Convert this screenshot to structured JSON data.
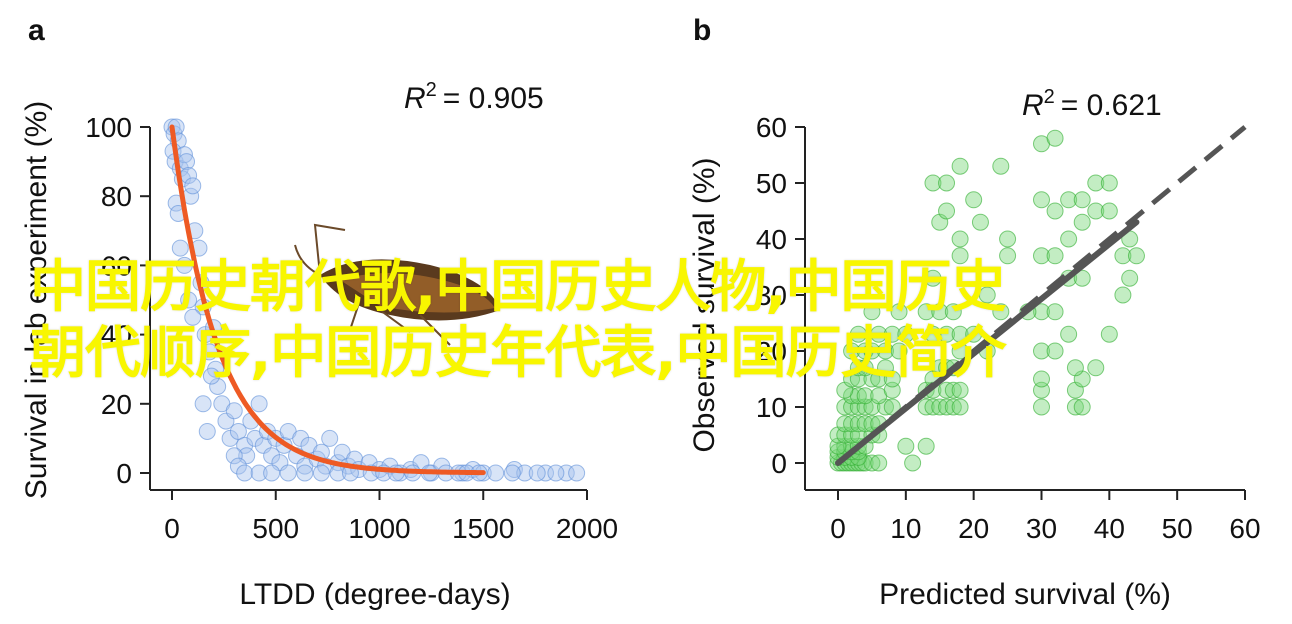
{
  "overlay": {
    "line1": "中国历史朝代歌,中国历史人物,中国历史",
    "line2": "朝代顺序,中国历史年代表,中国历史简介"
  },
  "colors": {
    "blue_point": "#a9c4ee",
    "blue_edge": "#5f8fd8",
    "green_point": "#7ad77a",
    "green_edge": "#2fae2f",
    "fit_orange": "#ee5a24",
    "fit_gray": "#555555",
    "overlay_yellow": "#f8f600"
  },
  "chart_data": [
    {
      "panel": "a",
      "type": "scatter",
      "xlabel": "LTDD (degree-days)",
      "ylabel": "Survival in lab experiment (%)",
      "annotation": {
        "r2_label": "R",
        "r2_sup": "2",
        "r2_value": "= 0.905"
      },
      "xlim": [
        0,
        2000
      ],
      "ylim": [
        0,
        100
      ],
      "xticks": [
        "0",
        "500",
        "1000",
        "1500",
        "2000"
      ],
      "yticks": [
        "0",
        "20",
        "40",
        "60",
        "80",
        "100"
      ],
      "points": [
        [
          0,
          100
        ],
        [
          10,
          98
        ],
        [
          20,
          100
        ],
        [
          30,
          96
        ],
        [
          5,
          93
        ],
        [
          15,
          90
        ],
        [
          40,
          88
        ],
        [
          50,
          85
        ],
        [
          60,
          92
        ],
        [
          70,
          90
        ],
        [
          80,
          86
        ],
        [
          90,
          80
        ],
        [
          20,
          78
        ],
        [
          30,
          75
        ],
        [
          100,
          83
        ],
        [
          110,
          70
        ],
        [
          40,
          65
        ],
        [
          60,
          60
        ],
        [
          130,
          65
        ],
        [
          140,
          55
        ],
        [
          150,
          48
        ],
        [
          80,
          50
        ],
        [
          100,
          45
        ],
        [
          160,
          40
        ],
        [
          180,
          35
        ],
        [
          200,
          42
        ],
        [
          210,
          30
        ],
        [
          220,
          25
        ],
        [
          240,
          20
        ],
        [
          150,
          20
        ],
        [
          170,
          12
        ],
        [
          190,
          28
        ],
        [
          260,
          15
        ],
        [
          280,
          10
        ],
        [
          300,
          18
        ],
        [
          320,
          12
        ],
        [
          350,
          8
        ],
        [
          360,
          5
        ],
        [
          380,
          15
        ],
        [
          400,
          10
        ],
        [
          420,
          20
        ],
        [
          440,
          8
        ],
        [
          460,
          12
        ],
        [
          300,
          5
        ],
        [
          320,
          2
        ],
        [
          480,
          5
        ],
        [
          500,
          10
        ],
        [
          520,
          3
        ],
        [
          540,
          8
        ],
        [
          560,
          12
        ],
        [
          600,
          5
        ],
        [
          620,
          10
        ],
        [
          640,
          2
        ],
        [
          660,
          8
        ],
        [
          700,
          4
        ],
        [
          720,
          6
        ],
        [
          740,
          2
        ],
        [
          760,
          10
        ],
        [
          800,
          3
        ],
        [
          820,
          6
        ],
        [
          850,
          2
        ],
        [
          880,
          4
        ],
        [
          900,
          1
        ],
        [
          950,
          3
        ],
        [
          1000,
          1
        ],
        [
          1050,
          2
        ],
        [
          1100,
          0
        ],
        [
          1150,
          1
        ],
        [
          1200,
          3
        ],
        [
          1250,
          0
        ],
        [
          1300,
          2
        ],
        [
          1400,
          0
        ],
        [
          1450,
          1
        ],
        [
          1500,
          0
        ],
        [
          1650,
          1
        ],
        [
          1700,
          0
        ],
        [
          1800,
          0
        ],
        [
          1900,
          0
        ],
        [
          1950,
          0
        ],
        [
          350,
          0
        ],
        [
          420,
          0
        ],
        [
          480,
          0
        ],
        [
          560,
          0
        ],
        [
          640,
          0
        ],
        [
          720,
          0
        ],
        [
          800,
          0
        ],
        [
          860,
          0
        ],
        [
          960,
          0
        ],
        [
          1020,
          0
        ],
        [
          1080,
          0
        ],
        [
          1160,
          0
        ],
        [
          1240,
          0
        ],
        [
          1320,
          0
        ],
        [
          1380,
          0
        ],
        [
          1420,
          0
        ],
        [
          1480,
          0
        ],
        [
          1560,
          0
        ],
        [
          1640,
          0
        ],
        [
          1760,
          0
        ],
        [
          1850,
          0
        ]
      ],
      "fit": {
        "type": "exponential",
        "formula": "100*exp(-x/220)",
        "x_range": [
          0,
          1500
        ]
      }
    },
    {
      "panel": "b",
      "type": "scatter",
      "xlabel": "Predicted survival (%)",
      "ylabel": "Observed survival (%)",
      "annotation": {
        "r2_label": "R",
        "r2_sup": "2",
        "r2_value": "= 0.621"
      },
      "xlim": [
        0,
        60
      ],
      "ylim": [
        0,
        60
      ],
      "xticks": [
        "0",
        "10",
        "20",
        "30",
        "40",
        "50",
        "60"
      ],
      "yticks": [
        "0",
        "10",
        "20",
        "30",
        "40",
        "50",
        "60"
      ],
      "points": [
        [
          0,
          0
        ],
        [
          0.5,
          0
        ],
        [
          1,
          0
        ],
        [
          1.5,
          0
        ],
        [
          2,
          0
        ],
        [
          2.5,
          0
        ],
        [
          3,
          0
        ],
        [
          3.5,
          0
        ],
        [
          4,
          0
        ],
        [
          5,
          0
        ],
        [
          6,
          0
        ],
        [
          0,
          1
        ],
        [
          1,
          1
        ],
        [
          2,
          1
        ],
        [
          3,
          1
        ],
        [
          0,
          2
        ],
        [
          1,
          2
        ],
        [
          2,
          2
        ],
        [
          3,
          2
        ],
        [
          1,
          3
        ],
        [
          2,
          3
        ],
        [
          3,
          3
        ],
        [
          0,
          3
        ],
        [
          4,
          3
        ],
        [
          0,
          5
        ],
        [
          1,
          5
        ],
        [
          2,
          5
        ],
        [
          3,
          5
        ],
        [
          5,
          5
        ],
        [
          6,
          5
        ],
        [
          1,
          7
        ],
        [
          2,
          7
        ],
        [
          3,
          7
        ],
        [
          4,
          7
        ],
        [
          5,
          7
        ],
        [
          6,
          7
        ],
        [
          1,
          10
        ],
        [
          2,
          10
        ],
        [
          3,
          10
        ],
        [
          4,
          10
        ],
        [
          5,
          10
        ],
        [
          7,
          10
        ],
        [
          8,
          10
        ],
        [
          2,
          12
        ],
        [
          3,
          12
        ],
        [
          4,
          12
        ],
        [
          6,
          12
        ],
        [
          8,
          13
        ],
        [
          1,
          13
        ],
        [
          2,
          15
        ],
        [
          3,
          15
        ],
        [
          5,
          15
        ],
        [
          6,
          15
        ],
        [
          8,
          15
        ],
        [
          3,
          17
        ],
        [
          4,
          17
        ],
        [
          7,
          17
        ],
        [
          2,
          20
        ],
        [
          4,
          20
        ],
        [
          5,
          20
        ],
        [
          7,
          20
        ],
        [
          9,
          20
        ],
        [
          3,
          23
        ],
        [
          6,
          23
        ],
        [
          8,
          23
        ],
        [
          10,
          23
        ],
        [
          5,
          27
        ],
        [
          9,
          27
        ],
        [
          13,
          10
        ],
        [
          14,
          10
        ],
        [
          15,
          10
        ],
        [
          16,
          10
        ],
        [
          17,
          10
        ],
        [
          18,
          10
        ],
        [
          13,
          13
        ],
        [
          14,
          13
        ],
        [
          16,
          13
        ],
        [
          17,
          13
        ],
        [
          18,
          13
        ],
        [
          14,
          15
        ],
        [
          15,
          17
        ],
        [
          16,
          17
        ],
        [
          17,
          17
        ],
        [
          18,
          20
        ],
        [
          14,
          23
        ],
        [
          16,
          23
        ],
        [
          18,
          23
        ],
        [
          13,
          27
        ],
        [
          15,
          27
        ],
        [
          17,
          27
        ],
        [
          14,
          33
        ],
        [
          18,
          37
        ],
        [
          18,
          40
        ],
        [
          14,
          50
        ],
        [
          16,
          50
        ],
        [
          18,
          53
        ],
        [
          24,
          53
        ],
        [
          30,
          57
        ],
        [
          32,
          58
        ],
        [
          30,
          10
        ],
        [
          30,
          13
        ],
        [
          30,
          15
        ],
        [
          30,
          20
        ],
        [
          32,
          20
        ],
        [
          34,
          23
        ],
        [
          30,
          27
        ],
        [
          32,
          27
        ],
        [
          34,
          33
        ],
        [
          36,
          33
        ],
        [
          30,
          37
        ],
        [
          32,
          37
        ],
        [
          34,
          40
        ],
        [
          36,
          43
        ],
        [
          38,
          45
        ],
        [
          40,
          45
        ],
        [
          34,
          47
        ],
        [
          36,
          47
        ],
        [
          30,
          47
        ],
        [
          32,
          45
        ],
        [
          38,
          50
        ],
        [
          40,
          50
        ],
        [
          35,
          10
        ],
        [
          36,
          10
        ],
        [
          35,
          13
        ],
        [
          36,
          15
        ],
        [
          35,
          17
        ],
        [
          38,
          17
        ],
        [
          40,
          23
        ],
        [
          42,
          30
        ],
        [
          43,
          33
        ],
        [
          42,
          37
        ],
        [
          43,
          40
        ],
        [
          44,
          37
        ],
        [
          28,
          27
        ],
        [
          24,
          27
        ],
        [
          22,
          30
        ],
        [
          25,
          37
        ],
        [
          25,
          40
        ],
        [
          21,
          43
        ],
        [
          20,
          47
        ],
        [
          15,
          43
        ],
        [
          16,
          45
        ],
        [
          20,
          23
        ],
        [
          22,
          20
        ],
        [
          10,
          3
        ],
        [
          11,
          0
        ],
        [
          13,
          3
        ]
      ],
      "one_to_one": {
        "x_range": [
          0,
          60
        ]
      },
      "fit": {
        "type": "linear",
        "x_range": [
          0,
          44
        ],
        "y_range": [
          0,
          43
        ]
      }
    }
  ],
  "panels": {
    "a": "a",
    "b": "b"
  }
}
